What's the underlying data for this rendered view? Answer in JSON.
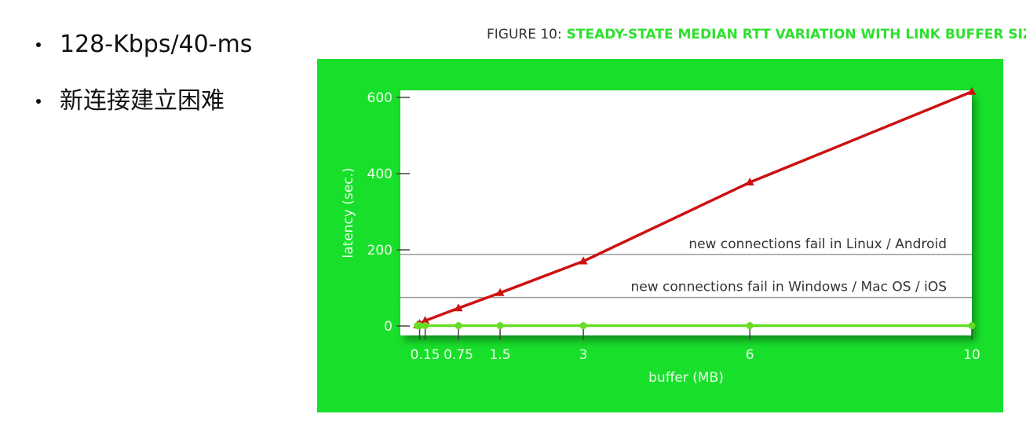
{
  "bullets": [
    {
      "text": "128-Kbps/40-ms"
    },
    {
      "text": "新连接建立困难"
    }
  ],
  "colors": {
    "panel": "#18e02a",
    "plot_bg": "#ffffff",
    "series_red": "#cc1111",
    "series_green": "#66dd22",
    "threshold_line": "#999999"
  },
  "chart_data": {
    "type": "line",
    "title_prefix": "FIGURE 10:",
    "title": "STEADY-STATE MEDIAN RTT VARIATION WITH LINK BUFFER SIZE",
    "xlabel": "buffer (MB)",
    "ylabel": "latency (sec.)",
    "x_ticks": [
      0.15,
      0.75,
      1.5,
      3,
      6,
      10
    ],
    "y_ticks": [
      0,
      200,
      400,
      600
    ],
    "xlim": [
      0,
      10
    ],
    "ylim": [
      0,
      620
    ],
    "grid": false,
    "series": [
      {
        "color": "red",
        "marker": "triangle",
        "x": [
          0.01,
          0.05,
          0.15,
          0.75,
          1.5,
          3,
          6,
          10
        ],
        "y": [
          2,
          6,
          14,
          47,
          87,
          170,
          377,
          615
        ]
      },
      {
        "color": "green",
        "marker": "circle",
        "x": [
          0.01,
          0.05,
          0.15,
          0.75,
          1.5,
          3,
          6,
          10
        ],
        "y": [
          1,
          1,
          1,
          1,
          1,
          1,
          1,
          1
        ]
      }
    ],
    "annotations": [
      {
        "text": "new connections fail in Linux / Android",
        "y": 188
      },
      {
        "text": "new connections fail in Windows / Mac OS / iOS",
        "y": 75
      }
    ]
  }
}
